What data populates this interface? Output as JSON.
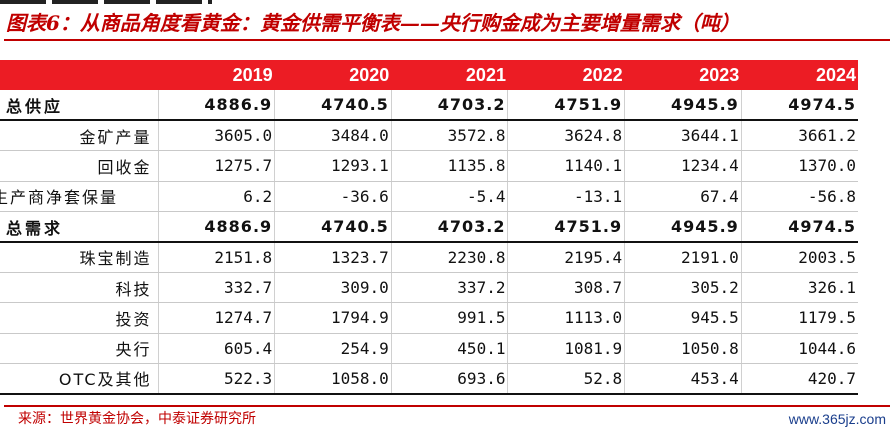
{
  "title": "图表6：从商品角度看黄金：黄金供需平衡表——央行购金成为主要增量需求（吨）",
  "table": {
    "header": [
      "",
      "2019",
      "2020",
      "2021",
      "2022",
      "2023",
      "2024"
    ],
    "rows": [
      {
        "label": "总供应",
        "values": [
          "4886.9",
          "4740.5",
          "4703.2",
          "4751.9",
          "4945.9",
          "4974.5"
        ]
      },
      {
        "label": "金矿产量",
        "values": [
          "3605.0",
          "3484.0",
          "3572.8",
          "3624.8",
          "3644.1",
          "3661.2"
        ]
      },
      {
        "label": "回收金",
        "values": [
          "1275.7",
          "1293.1",
          "1135.8",
          "1140.1",
          "1234.4",
          "1370.0"
        ]
      },
      {
        "label": "生产商净套保量",
        "values": [
          "6.2",
          "-36.6",
          "-5.4",
          "-13.1",
          "67.4",
          "-56.8"
        ]
      },
      {
        "label": "总需求",
        "values": [
          "4886.9",
          "4740.5",
          "4703.2",
          "4751.9",
          "4945.9",
          "4974.5"
        ]
      },
      {
        "label": "珠宝制造",
        "values": [
          "2151.8",
          "1323.7",
          "2230.8",
          "2195.4",
          "2191.0",
          "2003.5"
        ]
      },
      {
        "label": "科技",
        "values": [
          "332.7",
          "309.0",
          "337.2",
          "308.7",
          "305.2",
          "326.1"
        ]
      },
      {
        "label": "投资",
        "values": [
          "1274.7",
          "1794.9",
          "991.5",
          "1113.0",
          "945.5",
          "1179.5"
        ]
      },
      {
        "label": "央行",
        "values": [
          "605.4",
          "254.9",
          "450.1",
          "1081.9",
          "1050.8",
          "1044.6"
        ]
      },
      {
        "label": "OTC及其他",
        "values": [
          "522.3",
          "1058.0",
          "693.6",
          "52.8",
          "453.4",
          "420.7"
        ]
      }
    ]
  },
  "source": "来源：世界黄金协会，中泰证券研究所",
  "watermark": "www.365jz.com"
}
